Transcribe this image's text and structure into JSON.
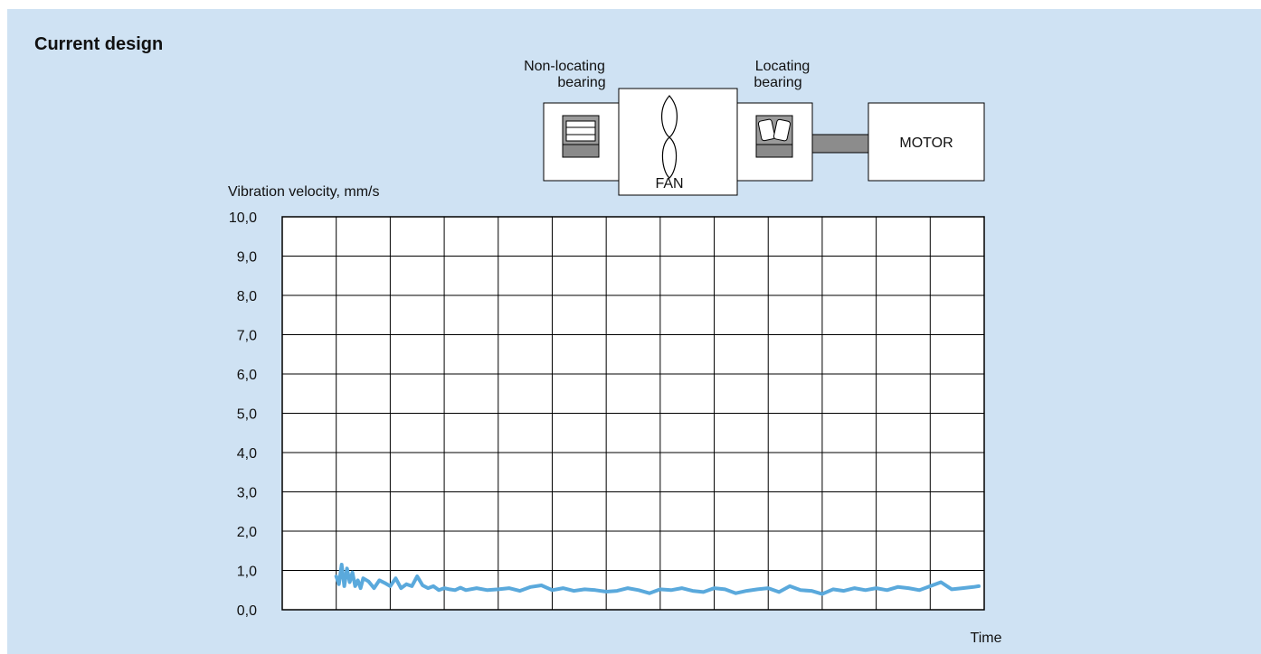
{
  "page_title": "Current design",
  "diagram": {
    "non_locating_label": [
      "Non-locating",
      "bearing"
    ],
    "locating_label": [
      "Locating",
      "bearing"
    ],
    "fan_label": "FAN",
    "motor_label": "MOTOR"
  },
  "colors": {
    "background": "#cfe2f3",
    "line": "#5aa9dc",
    "grid": "#000000",
    "box_fill": "#ffffff",
    "shaft": "#8c8c8c"
  },
  "chart_data": {
    "type": "line",
    "title": "",
    "ylabel": "Vibration velocity, mm/s",
    "xlabel": "Time",
    "ylim": [
      0,
      10
    ],
    "yticks": [
      "0,0",
      "1,0",
      "2,0",
      "3,0",
      "4,0",
      "5,0",
      "6,0",
      "7,0",
      "8,0",
      "9,0",
      "10,0"
    ],
    "grid": true,
    "x_gridlines": 13,
    "series": [
      {
        "name": "",
        "x": [
          1.0,
          1.05,
          1.1,
          1.15,
          1.2,
          1.25,
          1.3,
          1.35,
          1.4,
          1.45,
          1.5,
          1.6,
          1.7,
          1.8,
          1.9,
          2.0,
          2.1,
          2.2,
          2.3,
          2.4,
          2.5,
          2.6,
          2.7,
          2.8,
          2.9,
          3.0,
          3.1,
          3.2,
          3.3,
          3.4,
          3.6,
          3.8,
          4.0,
          4.2,
          4.4,
          4.6,
          4.8,
          5.0,
          5.2,
          5.4,
          5.6,
          5.8,
          6.0,
          6.2,
          6.4,
          6.6,
          6.8,
          7.0,
          7.2,
          7.4,
          7.6,
          7.8,
          8.0,
          8.2,
          8.4,
          8.6,
          8.8,
          9.0,
          9.2,
          9.4,
          9.6,
          9.8,
          10.0,
          10.2,
          10.4,
          10.6,
          10.8,
          11.0,
          11.2,
          11.4,
          11.6,
          11.8,
          12.0,
          12.2,
          12.4,
          12.6,
          12.8,
          12.9
        ],
        "y": [
          0.85,
          0.65,
          1.15,
          0.6,
          1.05,
          0.7,
          0.95,
          0.6,
          0.75,
          0.55,
          0.8,
          0.72,
          0.55,
          0.75,
          0.68,
          0.6,
          0.8,
          0.55,
          0.65,
          0.6,
          0.85,
          0.62,
          0.55,
          0.6,
          0.5,
          0.55,
          0.52,
          0.5,
          0.56,
          0.5,
          0.55,
          0.5,
          0.52,
          0.55,
          0.48,
          0.58,
          0.62,
          0.5,
          0.55,
          0.48,
          0.52,
          0.5,
          0.46,
          0.48,
          0.55,
          0.5,
          0.42,
          0.52,
          0.5,
          0.55,
          0.48,
          0.45,
          0.55,
          0.52,
          0.42,
          0.48,
          0.52,
          0.55,
          0.45,
          0.6,
          0.5,
          0.48,
          0.4,
          0.52,
          0.48,
          0.55,
          0.5,
          0.55,
          0.5,
          0.58,
          0.55,
          0.5,
          0.6,
          0.7,
          0.52,
          0.55,
          0.58,
          0.6
        ]
      }
    ]
  }
}
